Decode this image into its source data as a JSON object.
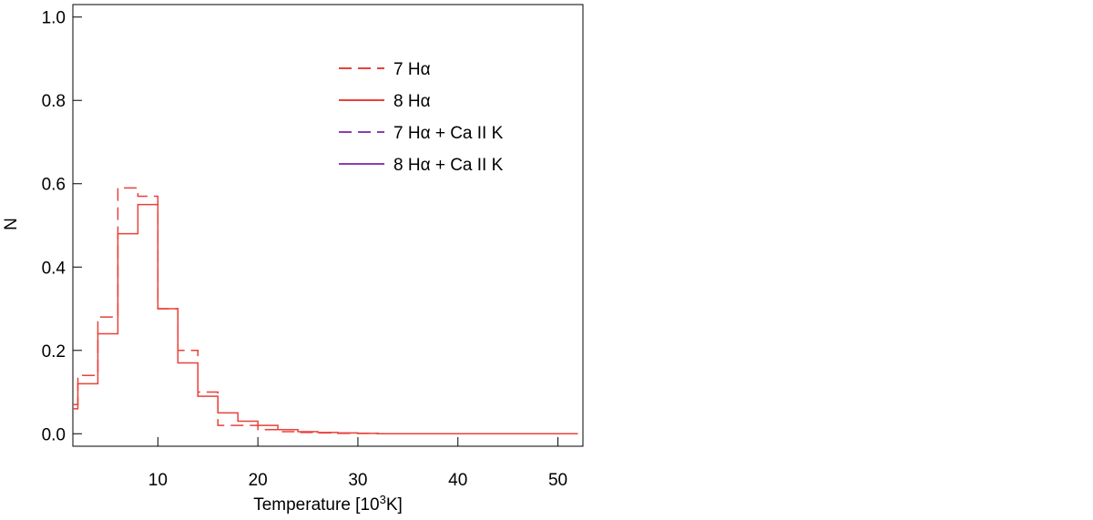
{
  "chart_data": [
    {
      "type": "histogram",
      "xlabel": "Temperature [10",
      "xlabel_sup": "3",
      "xlabel_tail": "K]",
      "ylabel": "N",
      "xlim": [
        1.5,
        52.5
      ],
      "ylim": [
        -0.03,
        1.03
      ],
      "x_ticks": [
        10,
        20,
        30,
        40,
        50
      ],
      "y_ticks": [
        0.0,
        0.2,
        0.4,
        0.6,
        0.8,
        1.0
      ],
      "y_tick_labels": [
        "0.0",
        "0.2",
        "0.4",
        "0.6",
        "0.8",
        "1.0"
      ],
      "legend": {
        "placement": "top-center",
        "entries": [
          {
            "label": "7 Hα",
            "color": "#e8413a",
            "dashed": true
          },
          {
            "label": "8 Hα",
            "color": "#e8413a",
            "dashed": false
          },
          {
            "label": "7 Hα + Ca II K",
            "color": "#8a3fb0",
            "dashed": true
          },
          {
            "label": "8 Hα + Ca II K",
            "color": "#8a3fb0",
            "dashed": false
          }
        ]
      },
      "series": [
        {
          "legend_index": 0,
          "color": "#e8413a",
          "dashed": true,
          "step": 2,
          "bins": [
            0,
            2,
            4,
            6,
            8,
            10,
            12,
            14,
            16,
            18,
            20,
            22,
            24,
            26,
            28,
            30,
            32,
            34,
            36,
            38,
            40,
            42,
            44,
            46,
            48,
            50
          ],
          "values": [
            0.07,
            0.14,
            0.28,
            0.59,
            0.57,
            0.3,
            0.2,
            0.1,
            0.02,
            0.02,
            0.01,
            0.005,
            0.003,
            0.002,
            0.001,
            0.001,
            0,
            0,
            0,
            0,
            0,
            0,
            0,
            0,
            0,
            0
          ]
        },
        {
          "legend_index": 1,
          "color": "#e8413a",
          "dashed": false,
          "step": 2,
          "bins": [
            0,
            2,
            4,
            6,
            8,
            10,
            12,
            14,
            16,
            18,
            20,
            22,
            24,
            26,
            28,
            30,
            32,
            34,
            36,
            38,
            40,
            42,
            44,
            46,
            48,
            50
          ],
          "values": [
            0.06,
            0.12,
            0.24,
            0.48,
            0.55,
            0.3,
            0.17,
            0.09,
            0.05,
            0.03,
            0.02,
            0.01,
            0.005,
            0.003,
            0.002,
            0.001,
            0,
            0,
            0,
            0,
            0,
            0,
            0,
            0,
            0,
            0
          ]
        }
      ]
    }
  ]
}
